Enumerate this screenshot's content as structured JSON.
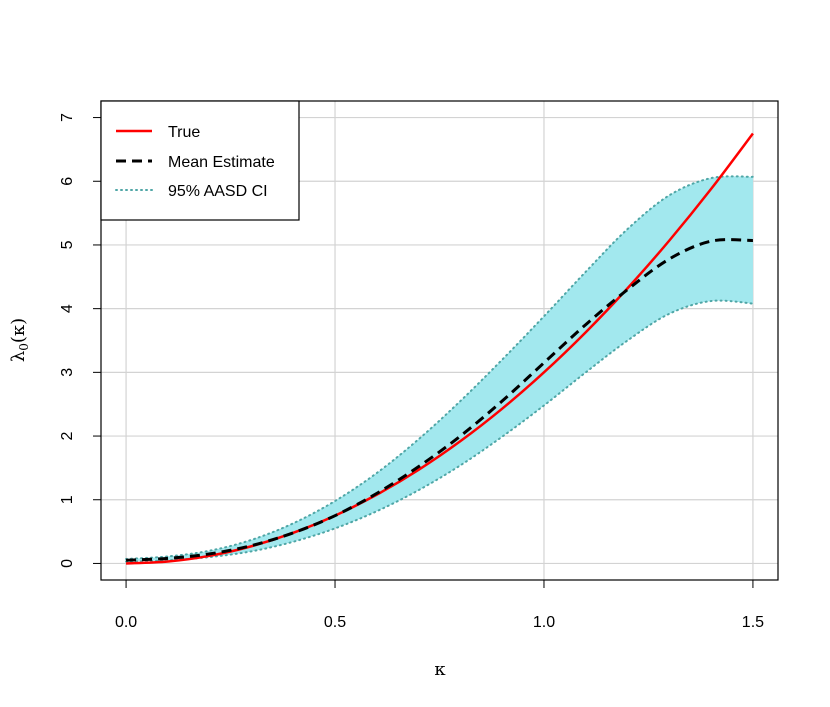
{
  "chart_data": {
    "type": "line",
    "title": "",
    "xlabel": "κ",
    "ylabel": "λ0(κ)",
    "xlim": [
      -0.06,
      1.56
    ],
    "ylim": [
      -0.26,
      7.26
    ],
    "x_ticks": [
      0.0,
      0.5,
      1.0,
      1.5
    ],
    "x_tick_labels": [
      "0.0",
      "0.5",
      "1.0",
      "1.5"
    ],
    "y_ticks": [
      0,
      1,
      2,
      3,
      4,
      5,
      6,
      7
    ],
    "y_tick_labels": [
      "0",
      "1",
      "2",
      "3",
      "4",
      "5",
      "6",
      "7"
    ],
    "grid": true,
    "legend_position": "top-left",
    "legend": [
      "True",
      "Mean Estimate",
      "95% AASD CI"
    ],
    "x": [
      0.0,
      0.1,
      0.2,
      0.3,
      0.4,
      0.5,
      0.6,
      0.7,
      0.8,
      0.9,
      1.0,
      1.1,
      1.2,
      1.3,
      1.4,
      1.5
    ],
    "series": [
      {
        "name": "True",
        "style": "solid",
        "color": "#ff0000",
        "values": [
          0.0,
          0.03,
          0.12,
          0.27,
          0.48,
          0.75,
          1.08,
          1.47,
          1.92,
          2.43,
          3.0,
          3.63,
          4.32,
          5.07,
          5.88,
          6.75
        ]
      },
      {
        "name": "Mean Estimate",
        "style": "dashed",
        "color": "#000000",
        "values": [
          0.05,
          0.08,
          0.15,
          0.28,
          0.48,
          0.75,
          1.1,
          1.52,
          2.0,
          2.55,
          3.15,
          3.75,
          4.3,
          4.78,
          5.06,
          5.07
        ]
      },
      {
        "name": "95% AASD CI",
        "style": "dotted-band",
        "color": "#4fa6a6",
        "fill": "#a2e8ee",
        "upper": [
          0.07,
          0.11,
          0.2,
          0.37,
          0.63,
          0.98,
          1.42,
          1.95,
          2.55,
          3.2,
          3.88,
          4.58,
          5.25,
          5.78,
          6.05,
          6.07
        ],
        "lower": [
          0.03,
          0.05,
          0.1,
          0.19,
          0.34,
          0.55,
          0.82,
          1.15,
          1.54,
          1.99,
          2.48,
          3.0,
          3.5,
          3.92,
          4.12,
          4.08
        ]
      }
    ]
  }
}
